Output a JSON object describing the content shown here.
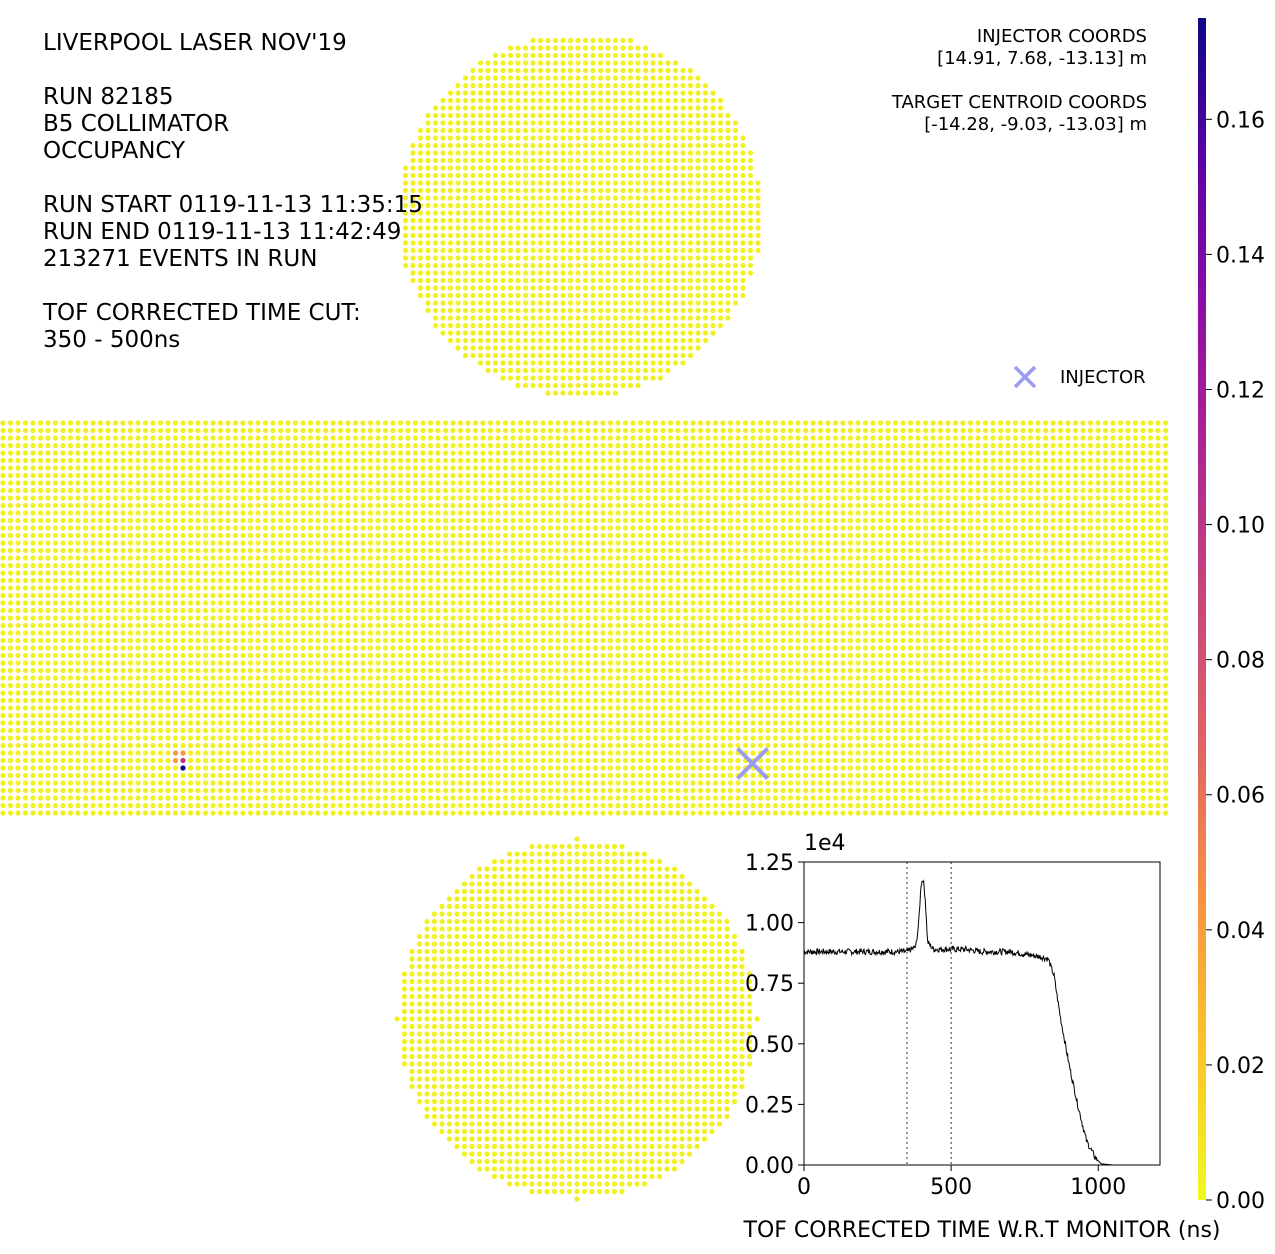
{
  "info": {
    "title": "LIVERPOOL LASER NOV'19",
    "run": "RUN 82185",
    "collimator": "B5 COLLIMATOR",
    "quantity": "OCCUPANCY",
    "run_start": "RUN START 0119-11-13 11:35:15",
    "run_end": "RUN END 0119-11-13 11:42:49",
    "events": "213271 EVENTS IN RUN",
    "cut_label": "TOF CORRECTED TIME CUT:",
    "cut_range": "350 - 500ns"
  },
  "coords": {
    "injector_label": "INJECTOR COORDS",
    "injector_value": "[14.91, 7.68, -13.13] m",
    "target_label": "TARGET CENTROID COORDS",
    "target_value": "[-14.28, -9.03, -13.03] m"
  },
  "legend": {
    "injector": "INJECTOR",
    "marker_color": "#9b9cf0"
  },
  "chart_data": [
    {
      "type": "heatmap",
      "description_free": true,
      "colormap": "plasma_r",
      "colorbar": {
        "range": [
          0.0,
          0.175
        ],
        "ticks": [
          "0.00",
          "0.02",
          "0.04",
          "0.06",
          "0.08",
          "0.10",
          "0.12",
          "0.14",
          "0.16"
        ],
        "tick_values": [
          0.0,
          0.02,
          0.04,
          0.06,
          0.08,
          0.1,
          0.12,
          0.14,
          0.16
        ]
      },
      "baseline_occupancy": 0.004,
      "hotspots": [
        {
          "region": "barrel",
          "col": 23,
          "row": 44,
          "value": 0.045
        },
        {
          "region": "barrel",
          "col": 23,
          "row": 45,
          "value": 0.04
        },
        {
          "region": "barrel",
          "col": 24,
          "row": 44,
          "value": 0.045
        },
        {
          "region": "barrel",
          "col": 24,
          "row": 45,
          "value": 0.1
        },
        {
          "region": "barrel",
          "col": 24,
          "row": 46,
          "value": 0.175
        }
      ],
      "injector_marker": {
        "region": "barrel",
        "col": 97,
        "row": 43
      }
    },
    {
      "type": "line",
      "x_exponent_label": "1e4",
      "xlabel": "TOF CORRECTED TIME W.R.T MONITOR (ns)",
      "xlim": [
        0,
        1210
      ],
      "ylim": [
        0,
        1.25
      ],
      "xticks": [
        "0",
        "500",
        "1000"
      ],
      "xtick_values": [
        0,
        500,
        1000
      ],
      "yticks": [
        "0.00",
        "0.25",
        "0.50",
        "0.75",
        "1.00",
        "1.25"
      ],
      "ytick_values": [
        0,
        0.25,
        0.5,
        0.75,
        1.0,
        1.25
      ],
      "cut_lines": [
        350,
        500
      ],
      "series": [
        {
          "x": [
            0,
            50,
            100,
            150,
            200,
            250,
            300,
            350,
            380,
            390,
            398,
            405,
            412,
            420,
            440,
            500,
            550,
            600,
            650,
            700,
            750,
            800,
            830,
            850,
            870,
            900,
            930,
            960,
            990,
            1010,
            1050,
            1100,
            1150,
            1200
          ],
          "y": [
            0.88,
            0.88,
            0.88,
            0.88,
            0.88,
            0.88,
            0.88,
            0.88,
            0.9,
            1.0,
            1.16,
            1.18,
            1.1,
            0.92,
            0.89,
            0.89,
            0.89,
            0.88,
            0.88,
            0.88,
            0.87,
            0.86,
            0.85,
            0.78,
            0.62,
            0.42,
            0.25,
            0.1,
            0.03,
            0.005,
            0.0,
            0.0,
            0.0,
            0.0
          ]
        }
      ]
    }
  ]
}
